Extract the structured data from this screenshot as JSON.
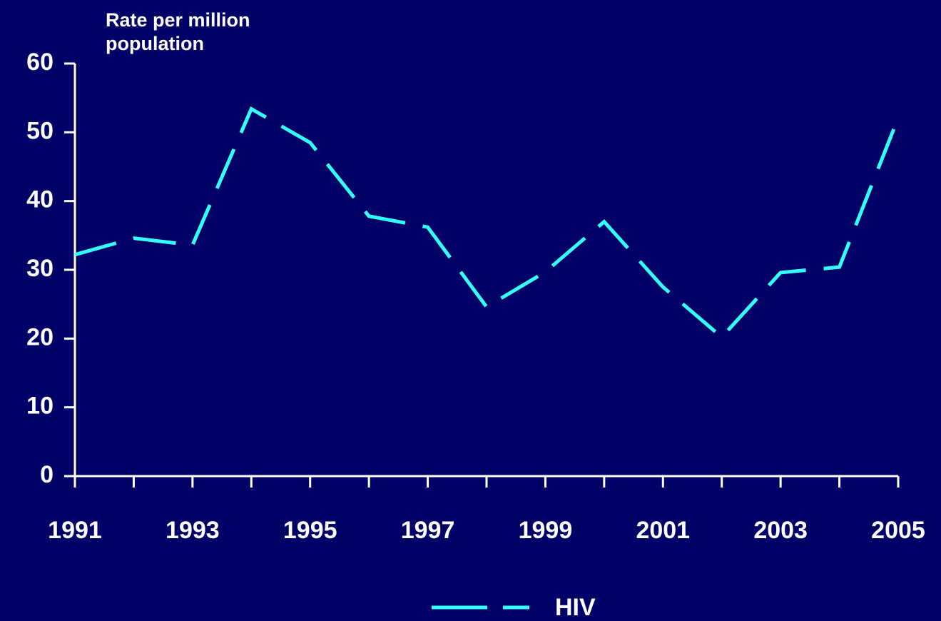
{
  "chart_data": {
    "type": "line",
    "y_label": "Rate per million population",
    "x": [
      1991,
      1992,
      1993,
      1994,
      1995,
      1996,
      1997,
      1998,
      1999,
      2000,
      2001,
      2002,
      2003,
      2004,
      2005
    ],
    "series": [
      {
        "name": "HIV",
        "color": "#33ffff",
        "dashed": true,
        "values": [
          32.2,
          34.6,
          33.6,
          53.4,
          48.5,
          37.8,
          36.2,
          24.6,
          29.7,
          37.0,
          27.5,
          20.2,
          29.6,
          30.4,
          52.1
        ]
      }
    ],
    "xlim": [
      1991,
      2005
    ],
    "xticks": [
      1991,
      1993,
      1995,
      1997,
      1999,
      2001,
      2003,
      2005
    ],
    "ylim": [
      0,
      60
    ],
    "yticks": [
      0,
      10,
      20,
      30,
      40,
      50,
      60
    ],
    "grid": false,
    "legend": "bottom"
  }
}
